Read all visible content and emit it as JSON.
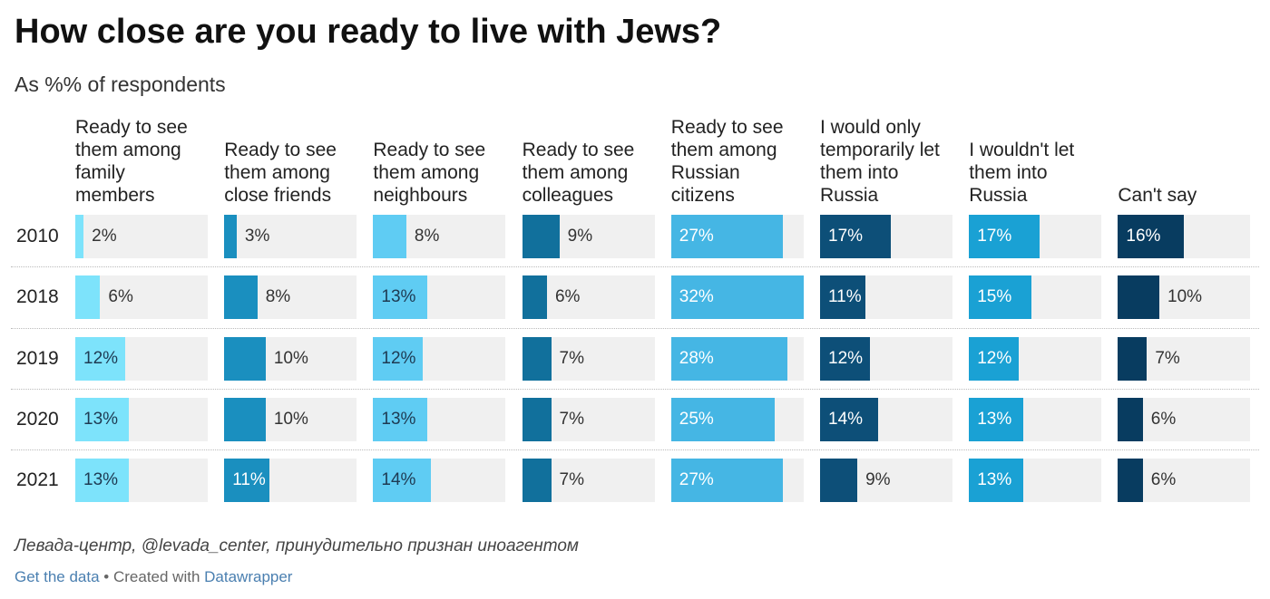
{
  "header": {
    "title": "How close are you ready to live with Jews?",
    "subtitle": "As %% of respondents"
  },
  "source": "Левада-центр, @levada_center, принудительно признан иноагентом",
  "footer": {
    "get_data": "Get the data",
    "separator": " • Created with ",
    "datawrapper": "Datawrapper"
  },
  "chart_data": {
    "type": "bar",
    "title": "How close are you ready to live with Jews?",
    "subtitle": "As %% of respondents",
    "value_suffix": "%",
    "xlim": [
      0,
      32
    ],
    "categories": [
      "2010",
      "2018",
      "2019",
      "2020",
      "2021"
    ],
    "series": [
      {
        "name": "Ready to see them among family members",
        "color": "#7de3fb",
        "values": [
          2,
          6,
          12,
          13,
          13
        ]
      },
      {
        "name": "Ready to see them among close friends",
        "color": "#1a8fbf",
        "values": [
          3,
          8,
          10,
          10,
          11
        ]
      },
      {
        "name": "Ready to see them among neighbours",
        "color": "#5fccf3",
        "values": [
          8,
          13,
          12,
          13,
          14
        ]
      },
      {
        "name": "Ready to see them among colleagues",
        "color": "#11709c",
        "values": [
          9,
          6,
          7,
          7,
          7
        ]
      },
      {
        "name": "Ready to see them among Russian citizens",
        "color": "#45b6e4",
        "values": [
          27,
          32,
          28,
          25,
          27
        ]
      },
      {
        "name": "I would only temporarily let them into Russia",
        "color": "#0d4f78",
        "values": [
          17,
          11,
          12,
          14,
          9
        ]
      },
      {
        "name": "I wouldn't let them into Russia",
        "color": "#1aa1d4",
        "values": [
          17,
          15,
          12,
          13,
          13
        ]
      },
      {
        "name": "Can't say",
        "color": "#083c60",
        "values": [
          16,
          10,
          7,
          6,
          6
        ]
      }
    ],
    "column_headers": [
      [
        "Ready to see",
        "them among",
        "family",
        "members"
      ],
      [
        "Ready to see",
        "them among",
        "close friends"
      ],
      [
        "Ready to see",
        "them among",
        "neighbours"
      ],
      [
        "Ready to see",
        "them among",
        "colleagues"
      ],
      [
        "Ready to see",
        "them among",
        "Russian",
        "citizens"
      ],
      [
        "I would only",
        "temporarily let",
        "them into",
        "Russia"
      ],
      [
        "I wouldn't let",
        "them into",
        "Russia"
      ],
      [
        "Can't say"
      ]
    ]
  }
}
